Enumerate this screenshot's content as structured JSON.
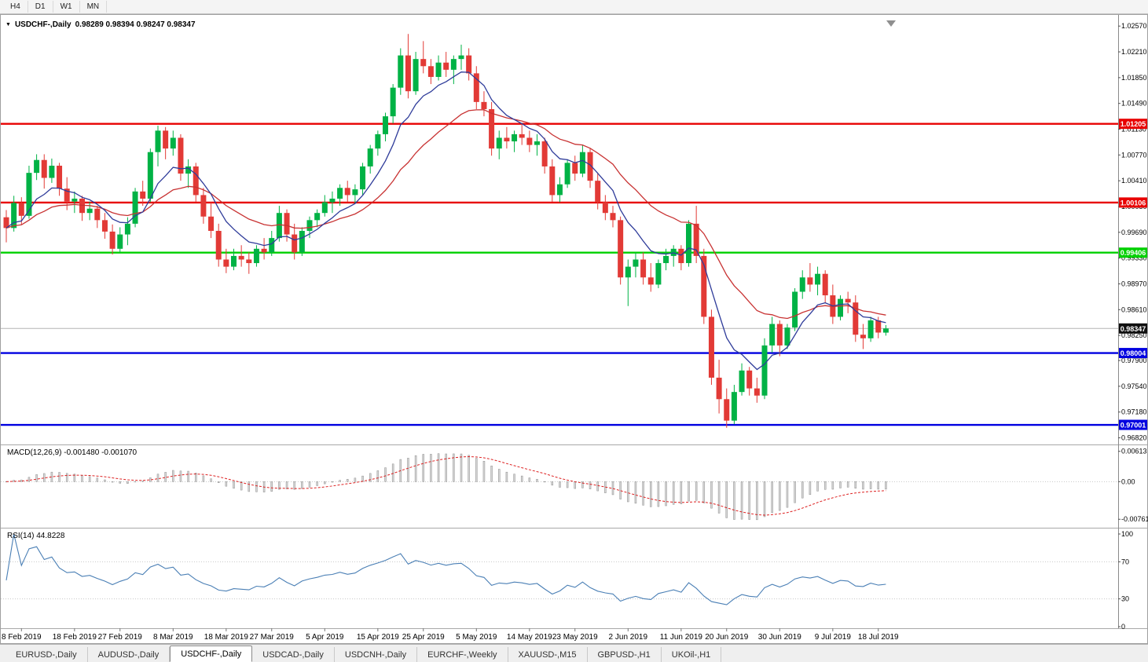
{
  "toolbar": {
    "timeframes": [
      "H4",
      "D1",
      "W1",
      "MN"
    ]
  },
  "chart": {
    "symbol_period": "USDCHF-,Daily",
    "ohlc_text": "0.98289 0.98394 0.98247 0.98347"
  },
  "indicators": {
    "macd": {
      "label": "MACD(12,26,9) -0.001480 -0.001070",
      "axis_ticks": [
        "0.00613",
        "0.00",
        "-0.00761"
      ]
    },
    "rsi": {
      "label": "RSI(14) 44.8228",
      "axis_ticks": [
        "100",
        "70",
        "30",
        "0"
      ],
      "levels": [
        70,
        30
      ]
    }
  },
  "colors": {
    "candle_up": "#00b245",
    "candle_down": "#e23a36",
    "ma_fast": "#2f3c9a",
    "ma_slow": "#c83232",
    "macd_hist_fill": "#d6d6d6",
    "macd_hist_stroke": "#8f8f8f",
    "macd_signal": "#dd2222",
    "rsi_line": "#4a7fb5",
    "current_price_line": "#b4b4b4",
    "current_tag_bg": "#101010",
    "grid_dotted": "#c8c8c8"
  },
  "tabs": [
    {
      "label": "EURUSD-,Daily",
      "active": false
    },
    {
      "label": "AUDUSD-,Daily",
      "active": false
    },
    {
      "label": "USDCHF-,Daily",
      "active": true
    },
    {
      "label": "USDCAD-,Daily",
      "active": false
    },
    {
      "label": "USDCNH-,Daily",
      "active": false
    },
    {
      "label": "EURCHF-,Weekly",
      "active": false
    },
    {
      "label": "XAUUSD-,M15",
      "active": false
    },
    {
      "label": "GBPUSD-,H1",
      "active": false
    },
    {
      "label": "UKOil-,H1",
      "active": false
    }
  ],
  "chart_data": {
    "type": "candlestick",
    "symbol": "USDCHF",
    "timeframe": "Daily",
    "price_scale": {
      "max": 1.0266,
      "min": 0.9676
    },
    "price_axis_ticks": [
      "1.02570",
      "1.02210",
      "1.01850",
      "1.01490",
      "1.01130",
      "1.00770",
      "1.00410",
      "1.00050",
      "0.99690",
      "0.99330",
      "0.98970",
      "0.98610",
      "0.98250",
      "0.97900",
      "0.97540",
      "0.97180",
      "0.96820"
    ],
    "levels": [
      {
        "price": 1.01205,
        "label": "1.01205",
        "color": "#e80000"
      },
      {
        "price": 1.00106,
        "label": "1.00106",
        "color": "#e80000"
      },
      {
        "price": 0.99406,
        "label": "0.99406",
        "color": "#00d000"
      },
      {
        "price": 0.98004,
        "label": "0.98004",
        "color": "#0000e0"
      },
      {
        "price": 0.97001,
        "label": "0.97001",
        "color": "#0000e0"
      }
    ],
    "current_price": {
      "value": 0.98347,
      "label": "0.98347"
    },
    "x_axis": {
      "labels": [
        "8 Feb 2019",
        "18 Feb 2019",
        "27 Feb 2019",
        "8 Mar 2019",
        "18 Mar 2019",
        "27 Mar 2019",
        "5 Apr 2019",
        "15 Apr 2019",
        "25 Apr 2019",
        "5 May 2019",
        "14 May 2019",
        "23 May 2019",
        "2 Jun 2019",
        "11 Jun 2019",
        "20 Jun 2019",
        "30 Jun 2019",
        "9 Jul 2019",
        "18 Jul 2019"
      ],
      "indices": [
        2,
        9,
        15,
        22,
        29,
        35,
        42,
        49,
        55,
        62,
        69,
        75,
        82,
        89,
        95,
        102,
        109,
        115
      ]
    },
    "moving_averages": [
      {
        "name": "fast",
        "period": 8,
        "color_key": "ma_fast"
      },
      {
        "name": "slow",
        "period": 21,
        "color_key": "ma_slow"
      }
    ],
    "macd_params": {
      "fast": 12,
      "slow": 26,
      "signal": 9,
      "scale_max": 0.0072,
      "scale_min": -0.009
    },
    "rsi_params": {
      "period": 14,
      "current": 44.8228
    },
    "candles": [
      [
        0.999,
        1.0,
        0.9955,
        0.9975
      ],
      [
        0.9975,
        1.002,
        0.997,
        1.001
      ],
      [
        1.001,
        1.0018,
        0.998,
        0.9992
      ],
      [
        0.9992,
        1.0062,
        0.9988,
        1.0052
      ],
      [
        1.0052,
        1.0078,
        1.0042,
        1.007
      ],
      [
        1.007,
        1.0078,
        1.003,
        1.0045
      ],
      [
        1.0045,
        1.0072,
        1.0038,
        1.0062
      ],
      [
        1.0062,
        1.0066,
        1.002,
        1.003
      ],
      [
        1.003,
        1.0046,
        1.0,
        1.0012
      ],
      [
        1.0012,
        1.0026,
        0.9996,
        1.0016
      ],
      [
        1.0016,
        1.002,
        0.9985,
        0.9996
      ],
      [
        0.9996,
        1.0012,
        0.9986,
        1.0002
      ],
      [
        1.0002,
        1.0006,
        0.9975,
        0.9986
      ],
      [
        0.9986,
        0.9996,
        0.996,
        0.997
      ],
      [
        0.997,
        0.998,
        0.9938,
        0.9946
      ],
      [
        0.9946,
        0.9976,
        0.9941,
        0.9966
      ],
      [
        0.9966,
        0.999,
        0.9951,
        0.9981
      ],
      [
        0.9981,
        1.0031,
        0.9976,
        1.0026
      ],
      [
        1.0026,
        1.0041,
        1.0006,
        1.0016
      ],
      [
        1.0016,
        1.0086,
        1.0011,
        1.0081
      ],
      [
        1.0081,
        1.0118,
        1.0061,
        1.0111
      ],
      [
        1.0111,
        1.0116,
        1.0071,
        1.0086
      ],
      [
        1.0086,
        1.0111,
        1.0076,
        1.0101
      ],
      [
        1.0101,
        1.0106,
        1.0041,
        1.0051
      ],
      [
        1.0051,
        1.0071,
        1.0031,
        1.0061
      ],
      [
        1.0061,
        1.0066,
        1.0011,
        1.0021
      ],
      [
        1.0021,
        1.0031,
        0.9981,
        0.9991
      ],
      [
        0.9991,
        1.0011,
        0.9961,
        0.9971
      ],
      [
        0.9971,
        0.9981,
        0.9921,
        0.9931
      ],
      [
        0.9931,
        0.9946,
        0.9912,
        0.9921
      ],
      [
        0.9921,
        0.9946,
        0.9916,
        0.9936
      ],
      [
        0.9936,
        0.9951,
        0.9921,
        0.9931
      ],
      [
        0.9931,
        0.9941,
        0.9911,
        0.9926
      ],
      [
        0.9926,
        0.9951,
        0.9921,
        0.9946
      ],
      [
        0.9946,
        0.9961,
        0.9931,
        0.9941
      ],
      [
        0.9941,
        0.9971,
        0.9936,
        0.9961
      ],
      [
        0.9961,
        1.0006,
        0.9956,
        0.9996
      ],
      [
        0.9996,
        1.0001,
        0.9956,
        0.9966
      ],
      [
        0.9966,
        0.9981,
        0.9931,
        0.9941
      ],
      [
        0.9941,
        0.9976,
        0.9936,
        0.9971
      ],
      [
        0.9971,
        0.9991,
        0.9961,
        0.9986
      ],
      [
        0.9986,
        1.0001,
        0.9976,
        0.9996
      ],
      [
        0.9996,
        1.0021,
        0.9991,
        1.0011
      ],
      [
        1.0011,
        1.0026,
        0.9996,
        1.0016
      ],
      [
        1.0016,
        1.0036,
        1.0006,
        1.0031
      ],
      [
        1.0031,
        1.0041,
        1.0011,
        1.0021
      ],
      [
        1.0021,
        1.0036,
        1.0009,
        1.0029
      ],
      [
        1.0029,
        1.0066,
        1.0021,
        1.0061
      ],
      [
        1.0061,
        1.0091,
        1.0051,
        1.0086
      ],
      [
        1.0086,
        1.0111,
        1.0076,
        1.0106
      ],
      [
        1.0106,
        1.0136,
        1.0096,
        1.0131
      ],
      [
        1.0131,
        1.0176,
        1.0121,
        1.0171
      ],
      [
        1.0171,
        1.0226,
        1.0161,
        1.0216
      ],
      [
        1.0216,
        1.0246,
        1.0156,
        1.0166
      ],
      [
        1.0166,
        1.0221,
        1.0161,
        1.0211
      ],
      [
        1.0211,
        1.0236,
        1.0191,
        1.0201
      ],
      [
        1.0201,
        1.0211,
        1.0176,
        1.0186
      ],
      [
        1.0186,
        1.0216,
        1.0181,
        1.0206
      ],
      [
        1.0206,
        1.0221,
        1.0186,
        1.0196
      ],
      [
        1.0196,
        1.0216,
        1.0176,
        1.0211
      ],
      [
        1.0211,
        1.0231,
        1.0196,
        1.0216
      ],
      [
        1.0216,
        1.0226,
        1.0181,
        1.0191
      ],
      [
        1.0191,
        1.0201,
        1.0141,
        1.0151
      ],
      [
        1.0151,
        1.0166,
        1.0131,
        1.0141
      ],
      [
        1.0141,
        1.0151,
        1.0076,
        1.0086
      ],
      [
        1.0086,
        1.0111,
        1.0071,
        1.0101
      ],
      [
        1.0101,
        1.0116,
        1.0086,
        1.0096
      ],
      [
        1.0096,
        1.0111,
        1.0081,
        1.0106
      ],
      [
        1.0106,
        1.0121,
        1.0091,
        1.0101
      ],
      [
        1.0101,
        1.0111,
        1.0081,
        1.0091
      ],
      [
        1.0091,
        1.0106,
        1.0076,
        1.0096
      ],
      [
        1.0096,
        1.0101,
        1.0051,
        1.0061
      ],
      [
        1.0061,
        1.0071,
        1.0011,
        1.0021
      ],
      [
        1.0021,
        1.0046,
        1.0011,
        1.0036
      ],
      [
        1.0036,
        1.0071,
        1.0031,
        1.0066
      ],
      [
        1.0066,
        1.0076,
        1.0041,
        1.0051
      ],
      [
        1.0051,
        1.0091,
        1.0046,
        1.0081
      ],
      [
        1.0081,
        1.0086,
        1.0031,
        1.0041
      ],
      [
        1.0041,
        1.0051,
        1.0001,
        1.0011
      ],
      [
        1.0011,
        1.0021,
        0.9986,
        0.9996
      ],
      [
        0.9996,
        1.0006,
        0.9976,
        0.9986
      ],
      [
        0.9986,
        0.9991,
        0.9896,
        0.9906
      ],
      [
        0.9906,
        0.9931,
        0.9866,
        0.9921
      ],
      [
        0.9921,
        0.9941,
        0.9906,
        0.9931
      ],
      [
        0.9931,
        0.9941,
        0.9896,
        0.9906
      ],
      [
        0.9906,
        0.9926,
        0.9886,
        0.9896
      ],
      [
        0.9896,
        0.9931,
        0.9891,
        0.9926
      ],
      [
        0.9926,
        0.9946,
        0.9916,
        0.9936
      ],
      [
        0.9936,
        0.9951,
        0.9921,
        0.9946
      ],
      [
        0.9946,
        0.9951,
        0.9916,
        0.9926
      ],
      [
        0.9926,
        0.9986,
        0.9921,
        0.9981
      ],
      [
        0.9981,
        1.0006,
        0.9926,
        0.9936
      ],
      [
        0.9936,
        0.9946,
        0.9841,
        0.9851
      ],
      [
        0.9851,
        0.9861,
        0.9756,
        0.9766
      ],
      [
        0.9766,
        0.9791,
        0.9716,
        0.9736
      ],
      [
        0.9736,
        0.9751,
        0.9696,
        0.9706
      ],
      [
        0.9706,
        0.9756,
        0.9701,
        0.9746
      ],
      [
        0.9746,
        0.9786,
        0.9741,
        0.9776
      ],
      [
        0.9776,
        0.9781,
        0.9741,
        0.9751
      ],
      [
        0.9751,
        0.9766,
        0.9731,
        0.9741
      ],
      [
        0.9741,
        0.9821,
        0.9736,
        0.9811
      ],
      [
        0.9811,
        0.9851,
        0.9801,
        0.9841
      ],
      [
        0.9841,
        0.9846,
        0.9796,
        0.9811
      ],
      [
        0.9811,
        0.9841,
        0.9806,
        0.9836
      ],
      [
        0.9836,
        0.9891,
        0.9831,
        0.9886
      ],
      [
        0.9886,
        0.9916,
        0.9876,
        0.9906
      ],
      [
        0.9906,
        0.9926,
        0.9886,
        0.9896
      ],
      [
        0.9896,
        0.9921,
        0.9881,
        0.9911
      ],
      [
        0.9911,
        0.9916,
        0.9871,
        0.9881
      ],
      [
        0.9881,
        0.9896,
        0.9841,
        0.9851
      ],
      [
        0.9851,
        0.9881,
        0.9846,
        0.9876
      ],
      [
        0.9876,
        0.9886,
        0.9856,
        0.9871
      ],
      [
        0.9871,
        0.9881,
        0.9816,
        0.9826
      ],
      [
        0.9826,
        0.9841,
        0.9806,
        0.9821
      ],
      [
        0.9821,
        0.9851,
        0.9816,
        0.9846
      ],
      [
        0.9846,
        0.9851,
        0.9821,
        0.9829
      ],
      [
        0.98289,
        0.98394,
        0.98247,
        0.98347
      ]
    ]
  }
}
